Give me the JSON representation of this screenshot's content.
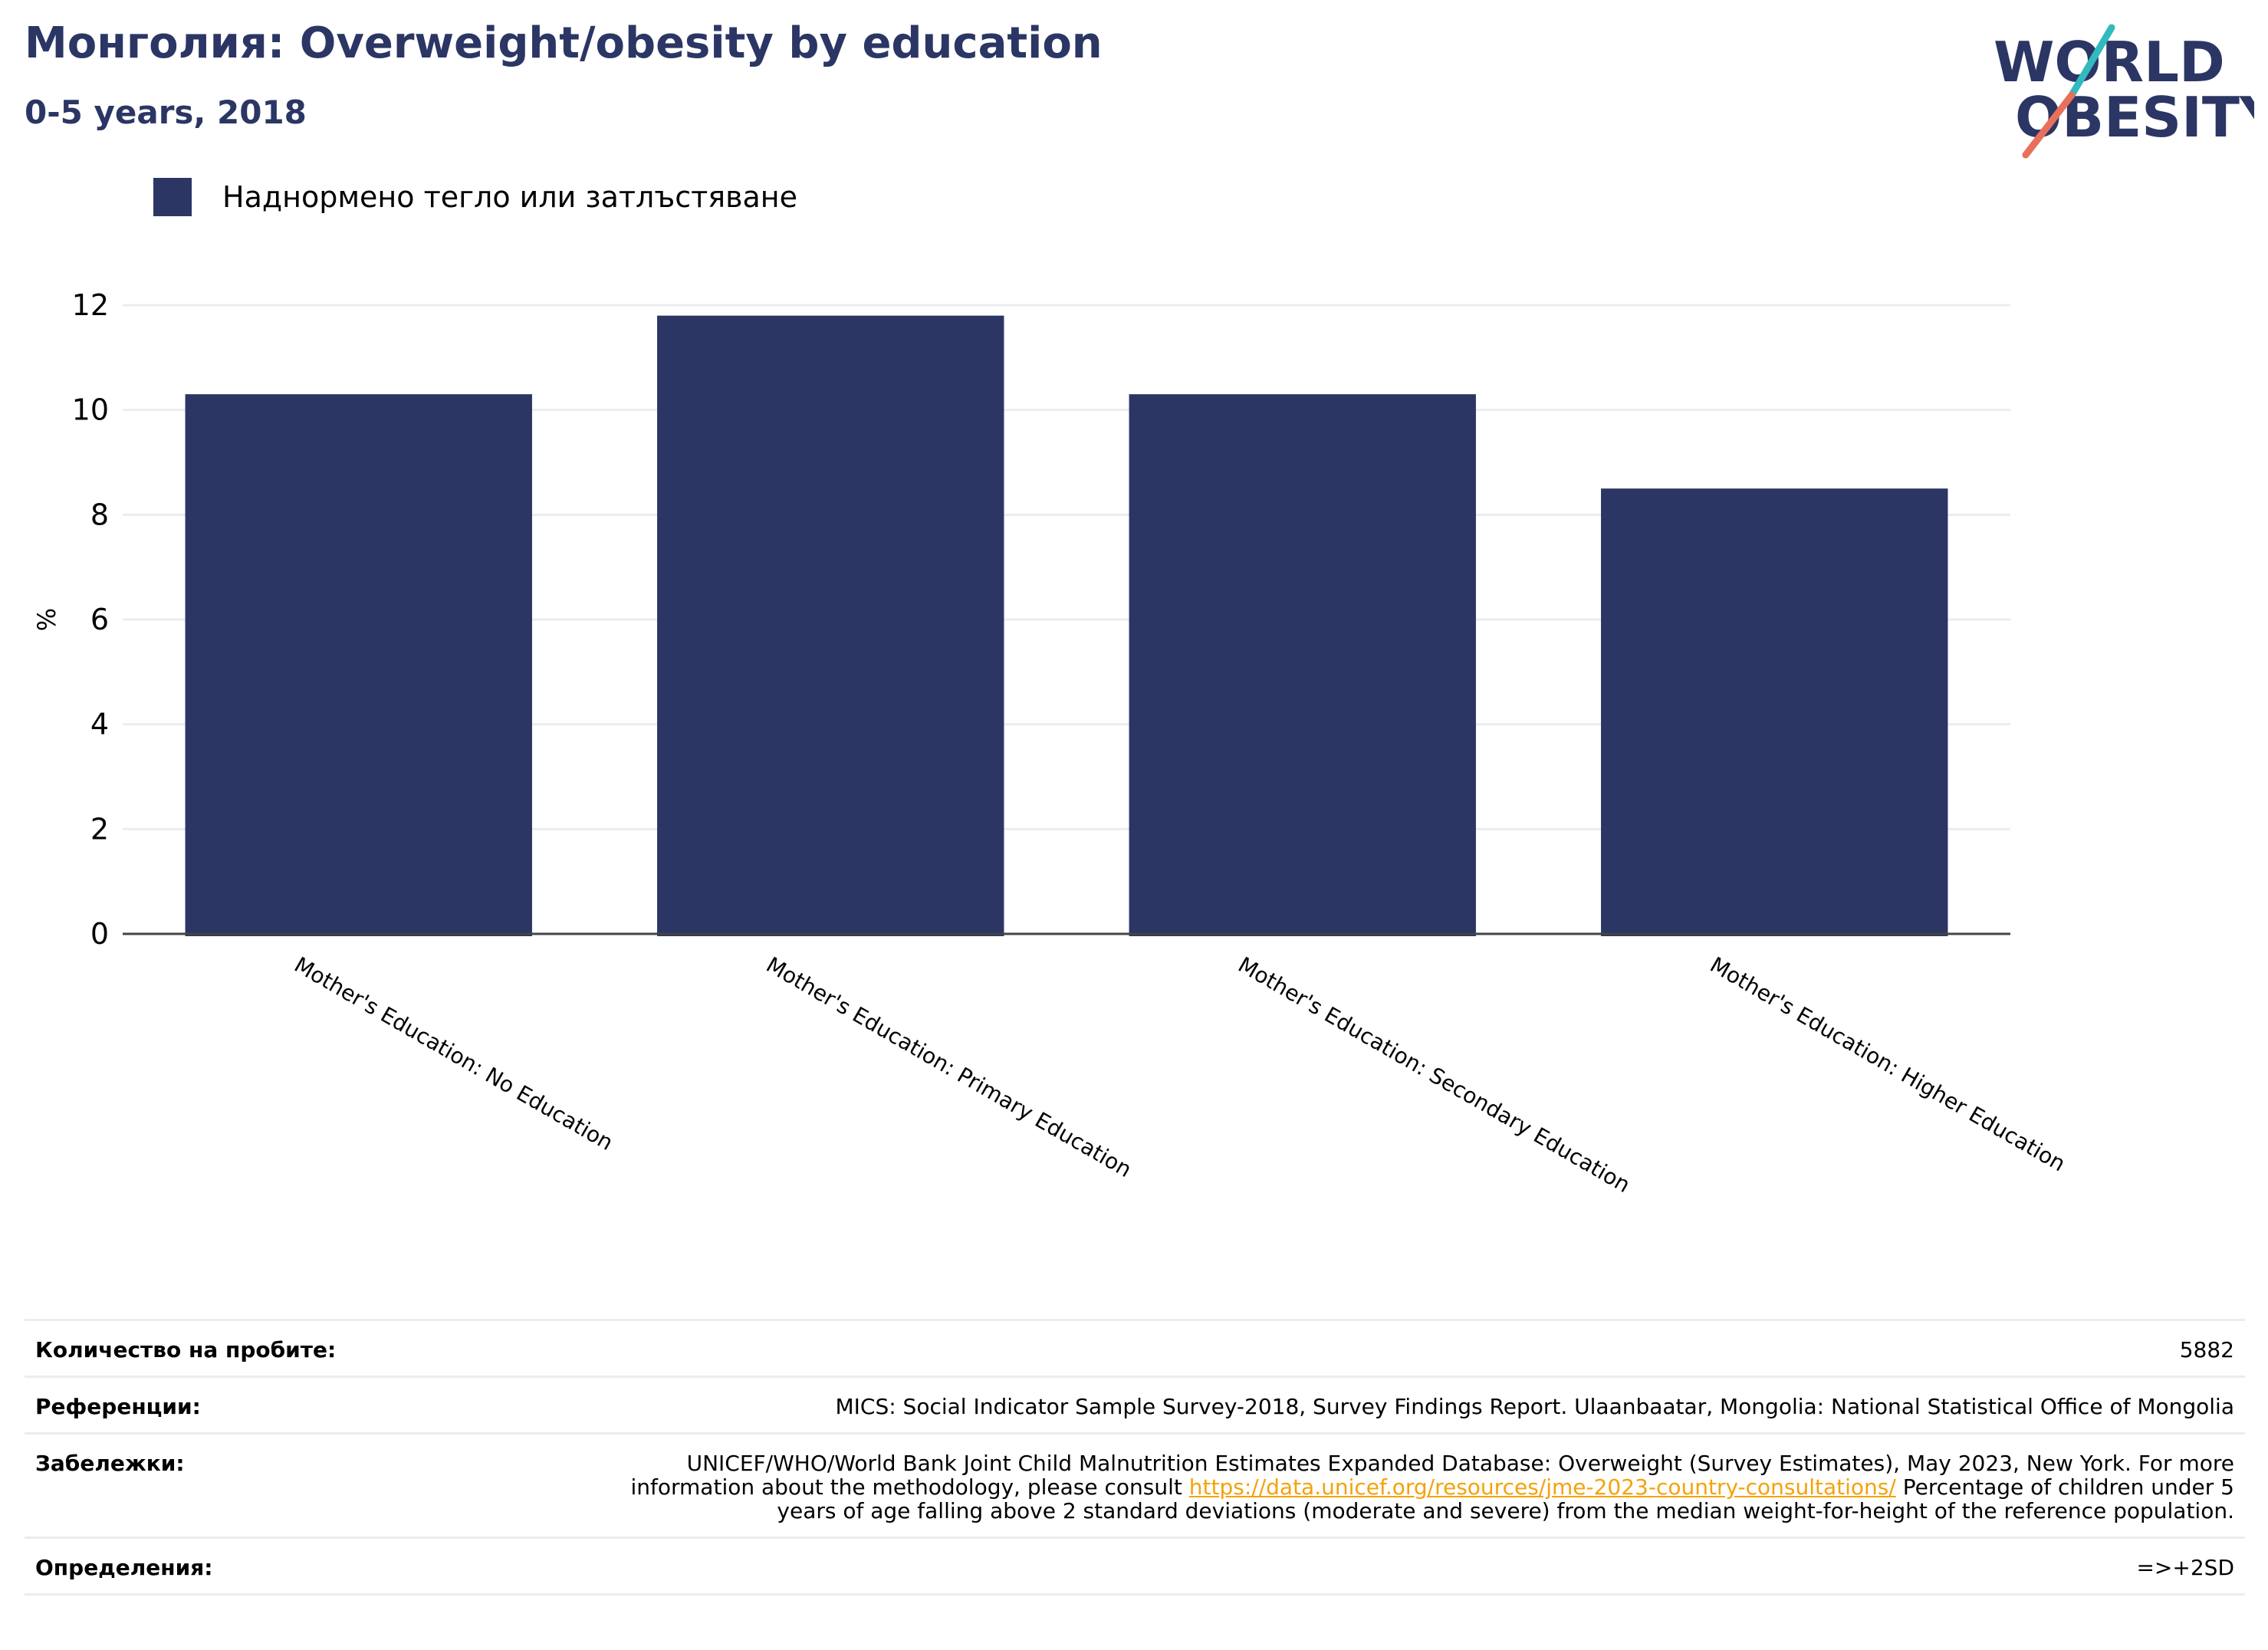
{
  "header": {
    "title": "Монголия: Overweight/obesity by education",
    "subtitle": "0-5 years, 2018"
  },
  "logo": {
    "line1": "WORLD",
    "line2": "OBESITY",
    "colors": {
      "text": "#2b3664",
      "slash_top": "#33b9c0",
      "slash_bottom": "#e8705a"
    }
  },
  "colors": {
    "bar": "#2b3664",
    "grid": "#ececf1",
    "axis": "#444444"
  },
  "legend": {
    "label": "Наднормено тегло или затлъстяване"
  },
  "chart_data": {
    "type": "bar",
    "title": "Монголия: Overweight/obesity by education",
    "subtitle": "0-5 years, 2018",
    "categories": [
      "Mother's Education: No Education",
      "Mother's Education: Primary Education",
      "Mother's Education: Secondary Education",
      "Mother's Education: Higher Education"
    ],
    "series": [
      {
        "name": "Наднормено тегло или затлъстяване",
        "values": [
          10.3,
          11.8,
          10.3,
          8.5
        ]
      }
    ],
    "ylabel": "%",
    "xlabel": "",
    "ylim": [
      0,
      12
    ],
    "yticks": [
      0,
      2,
      4,
      6,
      8,
      10,
      12
    ],
    "grid": true,
    "legend_position": "top-left"
  },
  "info": {
    "sample_size_label": "Количество на пробите:",
    "sample_size_value": "5882",
    "references_label": "Референции:",
    "references_value": "MICS: Social Indicator Sample Survey-2018, Survey Findings Report. Ulaanbaatar, Mongolia: National Statistical Office of Mongolia",
    "notes_label": "Забележки:",
    "notes_before": "UNICEF/WHO/World Bank Joint Child Malnutrition Estimates Expanded Database: Overweight (Survey Estimates), May 2023, New York. For more information about the methodology, please consult ",
    "notes_link": "https://data.unicef.org/resources/jme-2023-country-consultations/",
    "notes_after": " Percentage of children under 5 years of age falling above 2 standard deviations (moderate and severe) from the median weight-for-height of the reference population.",
    "definitions_label": "Определения:",
    "definitions_value": "=>+2SD"
  }
}
